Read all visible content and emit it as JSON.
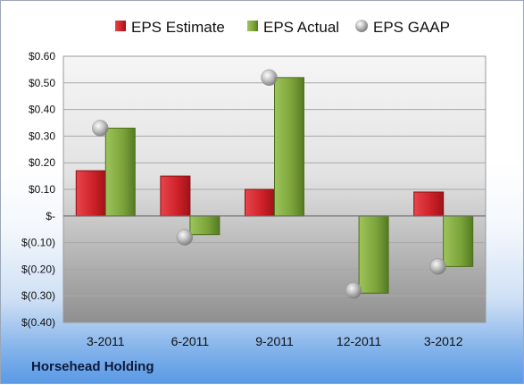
{
  "company": "Horsehead Holding",
  "colors": {
    "estimate": "#cc2027",
    "actual": "#7aa33a",
    "gaap": "#b5b5b5"
  },
  "chart_data": {
    "type": "bar",
    "categories": [
      "3-2011",
      "6-2011",
      "9-2011",
      "12-2011",
      "3-2012"
    ],
    "series": [
      {
        "name": "EPS Estimate",
        "values": [
          0.17,
          0.15,
          0.1,
          null,
          0.09
        ]
      },
      {
        "name": "EPS Actual",
        "values": [
          0.33,
          -0.07,
          0.52,
          -0.29,
          -0.19
        ]
      },
      {
        "name": "EPS GAAP",
        "values": [
          0.33,
          -0.08,
          0.52,
          -0.28,
          -0.19
        ],
        "style": "marker"
      }
    ],
    "ylim": [
      -0.4,
      0.6
    ],
    "yticks": [
      0.6,
      0.5,
      0.4,
      0.3,
      0.2,
      0.1,
      0.0,
      -0.1,
      -0.2,
      -0.3,
      -0.4
    ],
    "ytick_labels": [
      "$0.60",
      "$0.50",
      "$0.40",
      "$0.30",
      "$0.20",
      "$0.10",
      "$-",
      "$(0.10)",
      "$(0.20)",
      "$(0.30)",
      "$(0.40)"
    ],
    "grid": true,
    "legend": "top"
  }
}
